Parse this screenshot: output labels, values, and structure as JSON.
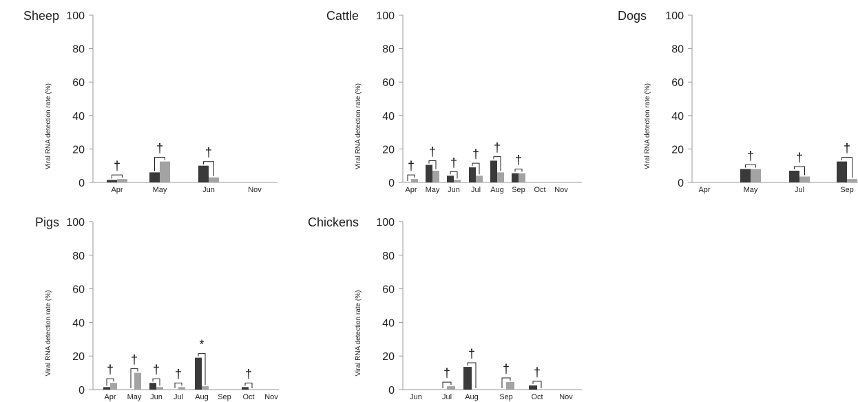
{
  "chart_data": [
    {
      "type": "bar",
      "title": "Sheep",
      "ylabel": "Viral RNA detection rate (%)",
      "ylim": [
        0,
        100
      ],
      "yticks": [
        "0",
        "20",
        "40",
        "60",
        "80",
        "100"
      ],
      "categories": [
        "Apr",
        "May",
        "Jun",
        "Nov"
      ],
      "series": [
        {
          "values": [
            1.5,
            6,
            10,
            0
          ],
          "color": "#3a3a3a"
        },
        {
          "values": [
            2,
            12.5,
            3,
            0
          ],
          "color": "#a3a3a3"
        }
      ],
      "annotations": [
        {
          "category": "Apr",
          "symbol": "†"
        },
        {
          "category": "May",
          "symbol": "†"
        },
        {
          "category": "Jun",
          "symbol": "†"
        }
      ]
    },
    {
      "type": "bar",
      "title": "Cattle",
      "ylabel": "Viral RNA detection rate (%)",
      "ylim": [
        0,
        100
      ],
      "yticks": [
        "0",
        "20",
        "40",
        "60",
        "80",
        "100"
      ],
      "categories": [
        "Apr",
        "May",
        "Jun",
        "Jul",
        "Aug",
        "Sep",
        "Oct",
        "Nov"
      ],
      "series": [
        {
          "values": [
            0,
            10.5,
            4,
            9,
            13,
            5.5,
            0,
            0
          ],
          "color": "#3a3a3a"
        },
        {
          "values": [
            2,
            7,
            1.5,
            4,
            6,
            5.5,
            0,
            0
          ],
          "color": "#a3a3a3"
        }
      ],
      "annotations": [
        {
          "category": "Apr",
          "symbol": "†"
        },
        {
          "category": "May",
          "symbol": "†"
        },
        {
          "category": "Jun",
          "symbol": "†"
        },
        {
          "category": "Jul",
          "symbol": "†"
        },
        {
          "category": "Aug",
          "symbol": "†"
        },
        {
          "category": "Sep",
          "symbol": "†"
        }
      ]
    },
    {
      "type": "bar",
      "title": "Dogs",
      "ylabel": "Viral RNA detection rate (%)",
      "ylim": [
        0,
        100
      ],
      "yticks": [
        "0",
        "20",
        "40",
        "60",
        "80",
        "100"
      ],
      "categories": [
        "Apr",
        "May",
        "Jul",
        "Sep"
      ],
      "series": [
        {
          "values": [
            0,
            8,
            7,
            12.5
          ],
          "color": "#3a3a3a"
        },
        {
          "values": [
            0,
            8,
            3.5,
            2
          ],
          "color": "#a3a3a3"
        }
      ],
      "annotations": [
        {
          "category": "May",
          "symbol": "†"
        },
        {
          "category": "Jul",
          "symbol": "†"
        },
        {
          "category": "Sep",
          "symbol": "†"
        }
      ]
    },
    {
      "type": "bar",
      "title": "Pigs",
      "ylabel": "Viral RNA detection rate (%)",
      "ylim": [
        0,
        100
      ],
      "yticks": [
        "0",
        "20",
        "40",
        "60",
        "80",
        "100"
      ],
      "categories": [
        "Apr",
        "May",
        "Jun",
        "Jul",
        "Aug",
        "Sep",
        "Oct",
        "Nov"
      ],
      "series": [
        {
          "values": [
            1.5,
            0,
            4,
            0,
            19,
            0,
            1.5,
            0
          ],
          "color": "#3a3a3a"
        },
        {
          "values": [
            4,
            10,
            1.5,
            1.5,
            2,
            0,
            0,
            0
          ],
          "color": "#a3a3a3"
        }
      ],
      "annotations": [
        {
          "category": "Apr",
          "symbol": "†"
        },
        {
          "category": "May",
          "symbol": "†"
        },
        {
          "category": "Jun",
          "symbol": "†"
        },
        {
          "category": "Jul",
          "symbol": "†"
        },
        {
          "category": "Aug",
          "symbol": "*"
        },
        {
          "category": "Oct",
          "symbol": "†"
        }
      ]
    },
    {
      "type": "bar",
      "title": "Chickens",
      "ylabel": "Viral RNA detection rate (%)",
      "ylim": [
        0,
        100
      ],
      "yticks": [
        "0",
        "20",
        "40",
        "60",
        "80",
        "100"
      ],
      "categories": [
        "Jun",
        "Jul",
        "Aug",
        "Sep",
        "Oct",
        "Nov"
      ],
      "series": [
        {
          "values": [
            0,
            0,
            13.5,
            0,
            2.5,
            0
          ],
          "color": "#3a3a3a"
        },
        {
          "values": [
            0,
            2,
            0,
            4.5,
            0,
            0
          ],
          "color": "#a3a3a3"
        }
      ],
      "annotations": [
        {
          "category": "Jul",
          "symbol": "†"
        },
        {
          "category": "Aug",
          "symbol": "†"
        },
        {
          "category": "Sep",
          "symbol": "†"
        },
        {
          "category": "Oct",
          "symbol": "†"
        }
      ]
    }
  ]
}
